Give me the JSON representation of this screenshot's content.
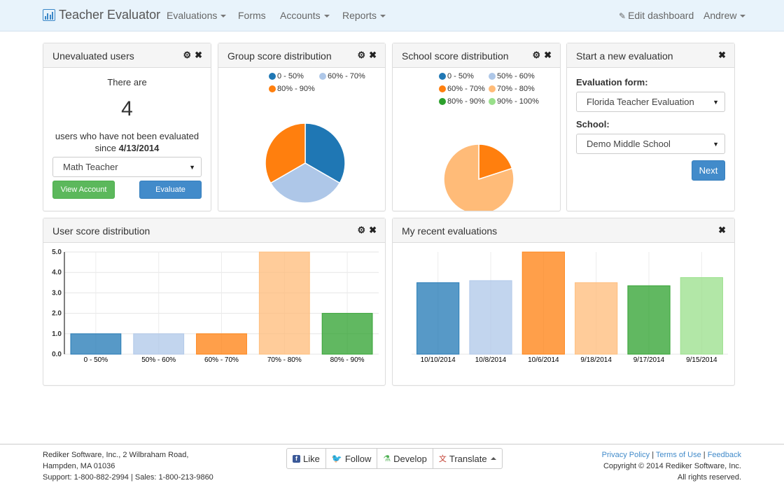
{
  "navbar": {
    "brand": "Teacher Evaluator",
    "menu": [
      {
        "label": "Evaluations",
        "dropdown": true
      },
      {
        "label": "Forms",
        "dropdown": false
      },
      {
        "label": "Accounts",
        "dropdown": true
      },
      {
        "label": "Reports",
        "dropdown": true
      }
    ],
    "edit_dashboard": "Edit dashboard",
    "user": "Andrew"
  },
  "unevaluated": {
    "title": "Unevaluated users",
    "there_are": "There are",
    "count": "4",
    "desc_line1": "users who have not been evaluated",
    "desc_since": "since",
    "date": "4/13/2014",
    "select_value": "Math Teacher",
    "view_account": "View Account",
    "evaluate": "Evaluate"
  },
  "group_panel": {
    "title": "Group score distribution",
    "legend": [
      "0 - 50%",
      "60% - 70%",
      "80% - 90%"
    ],
    "legend_colors": [
      "#1f77b4",
      "#aec7e8",
      "#ff7f0e"
    ]
  },
  "school_panel": {
    "title": "School score distribution",
    "legend": [
      "0 - 50%",
      "50% - 60%",
      "60% - 70%",
      "70% - 80%",
      "80% - 90%",
      "90% - 100%"
    ],
    "legend_colors": [
      "#1f77b4",
      "#aec7e8",
      "#ff7f0e",
      "#ffbb78",
      "#2ca02c",
      "#98df8a"
    ]
  },
  "new_eval": {
    "title": "Start a new evaluation",
    "form_label": "Evaluation form:",
    "form_value": "Florida Teacher Evaluation",
    "school_label": "School:",
    "school_value": "Demo Middle School",
    "next": "Next"
  },
  "user_panel": {
    "title": "User score distribution"
  },
  "recent_panel": {
    "title": "My recent evaluations"
  },
  "chart_data": [
    {
      "type": "pie",
      "labels": [
        "0 - 50%",
        "60% - 70%",
        "80% - 90%"
      ],
      "values": [
        1,
        1,
        1
      ],
      "colors": [
        "#1f77b4",
        "#aec7e8",
        "#ff7f0e"
      ]
    },
    {
      "type": "pie",
      "labels": [
        "60% - 70%",
        "70% - 80%"
      ],
      "values": [
        1,
        4
      ],
      "colors": [
        "#ff7f0e",
        "#ffbb78"
      ]
    },
    {
      "type": "bar",
      "categories": [
        "0 - 50%",
        "50% - 60%",
        "60% - 70%",
        "70% - 80%",
        "80% - 90%"
      ],
      "values": [
        1.0,
        1.0,
        1.0,
        5.0,
        2.0
      ],
      "colors": [
        "#1f77b4",
        "#aec7e8",
        "#ff7f0e",
        "#ffbb78",
        "#2ca02c"
      ],
      "yticks": [
        "0.0",
        "1.0",
        "2.0",
        "3.0",
        "4.0",
        "5.0"
      ],
      "ylim": [
        0,
        5
      ],
      "grid": true
    },
    {
      "type": "bar",
      "categories": [
        "10/10/2014",
        "10/8/2014",
        "10/6/2014",
        "9/18/2014",
        "9/17/2014",
        "9/15/2014"
      ],
      "values": [
        3.5,
        3.6,
        5.0,
        3.5,
        3.35,
        3.75
      ],
      "colors": [
        "#1f77b4",
        "#aec7e8",
        "#ff7f0e",
        "#ffbb78",
        "#2ca02c",
        "#98df8a"
      ],
      "ylim": [
        0,
        5
      ],
      "grid": true
    }
  ],
  "footer": {
    "address1": "Rediker Software, Inc., 2 Wilbraham Road,",
    "address2": "Hampden, MA 01036",
    "support": "Support: 1-800-882-2994 | Sales: 1-800-213-9860",
    "social": [
      "Like",
      "Follow",
      "Develop",
      "Translate"
    ],
    "privacy": "Privacy Policy",
    "terms": "Terms of Use",
    "feedback": "Feedback",
    "sep": "|",
    "copyright": "Copyright © 2014 Rediker Software, Inc.",
    "rights": "All rights reserved."
  }
}
